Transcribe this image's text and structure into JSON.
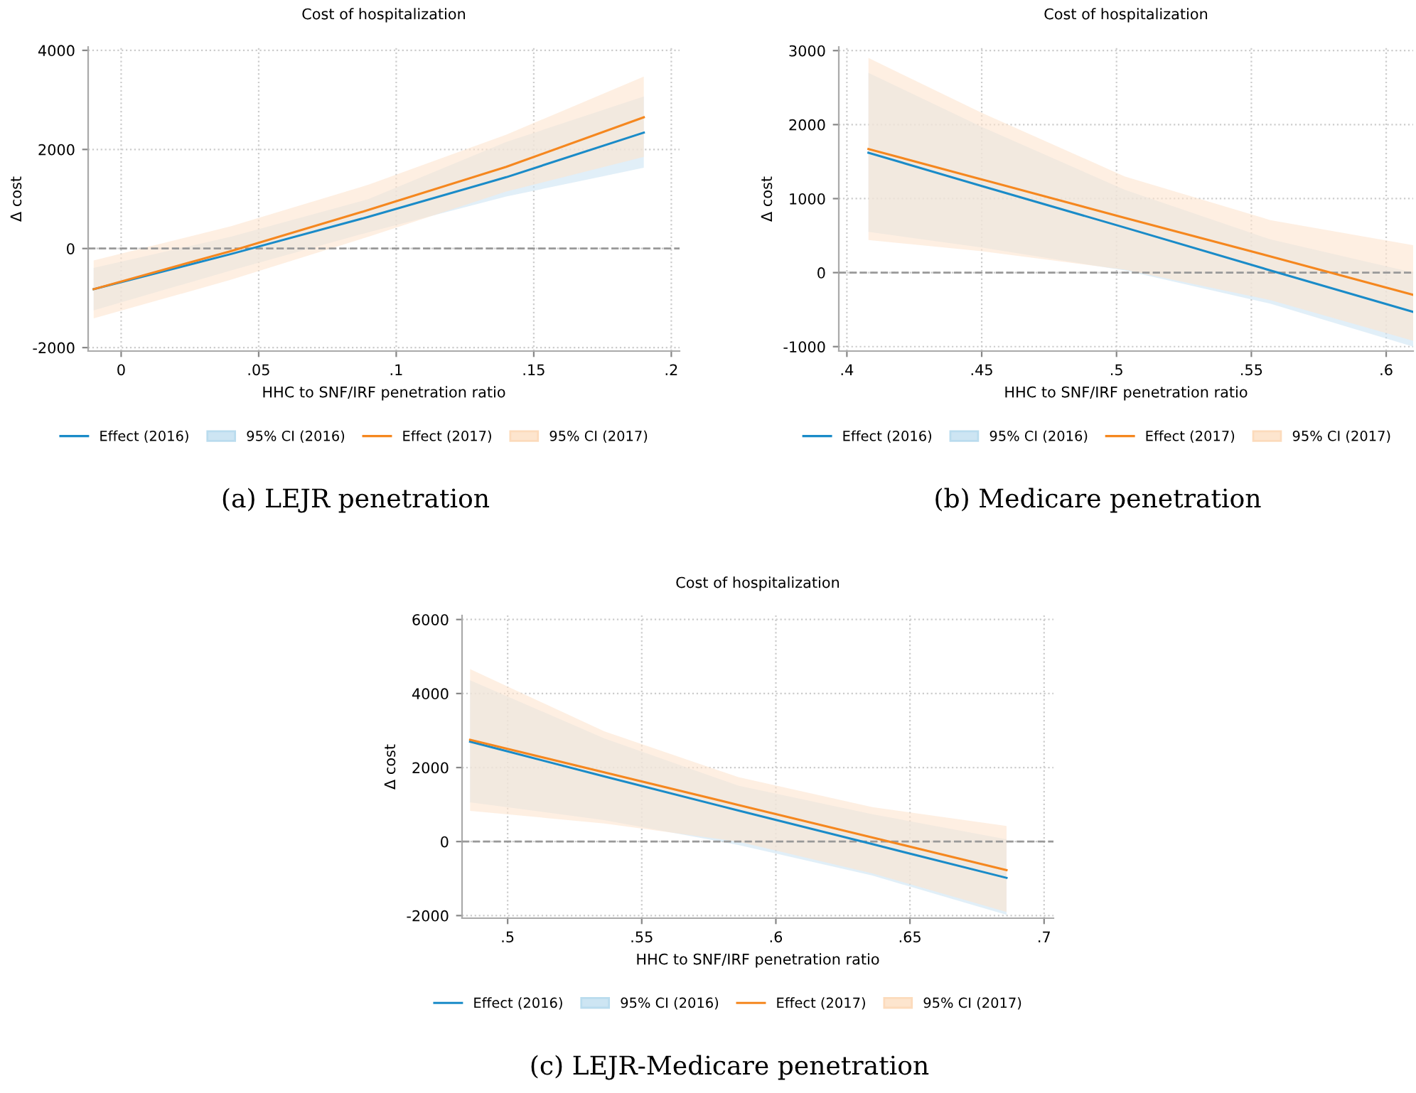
{
  "chart_data": [
    {
      "type": "line",
      "title": "Cost of hospitalization",
      "xlabel": "HHC to SNF/IRF penetration ratio",
      "ylabel": "Δ cost",
      "xlim": [
        -0.012,
        0.203
      ],
      "xticks": [
        {
          "value": 0,
          "label": "0"
        },
        {
          "value": 0.05,
          "label": ".05"
        },
        {
          "value": 0.1,
          "label": ".1"
        },
        {
          "value": 0.15,
          "label": ".15"
        },
        {
          "value": 0.2,
          "label": ".2"
        }
      ],
      "ylim": [
        -2070,
        4070
      ],
      "yticks": [
        -2000,
        0,
        2000,
        4000
      ],
      "grid": true,
      "legend": "bottom",
      "ref_lines": [
        {
          "axis": "y",
          "value": 0,
          "color": "#999999",
          "line_style": "dashed"
        }
      ],
      "annotations": [
        "(a) LEJR penetration",
        "95% CI (2016)",
        "95% CI (2017)"
      ],
      "series": [
        {
          "name": "Effect (2016)",
          "color": "#1a8bc8",
          "x": [
            -0.01,
            0.04,
            0.09,
            0.14,
            0.19
          ],
          "values": [
            -820,
            -110,
            640,
            1440,
            2340
          ],
          "lower": [
            -1250,
            -440,
            330,
            1050,
            1630
          ],
          "upper": [
            -390,
            240,
            1000,
            2150,
            3070
          ]
        },
        {
          "name": "Effect (2017)",
          "color": "#f5871f",
          "x": [
            -0.01,
            0.04,
            0.09,
            0.14,
            0.19
          ],
          "values": [
            -820,
            -50,
            780,
            1650,
            2650
          ],
          "lower": [
            -1410,
            -630,
            240,
            1150,
            1850
          ],
          "upper": [
            -240,
            450,
            1290,
            2300,
            3470
          ]
        }
      ]
    },
    {
      "type": "line",
      "title": "Cost of hospitalization",
      "xlabel": "HHC to SNF/IRF penetration ratio",
      "ylabel": "Δ cost",
      "xlim": [
        0.397,
        0.61
      ],
      "xticks": [
        {
          "value": 0.4,
          "label": ".4"
        },
        {
          "value": 0.45,
          "label": ".45"
        },
        {
          "value": 0.5,
          "label": ".5"
        },
        {
          "value": 0.55,
          "label": ".55"
        },
        {
          "value": 0.6,
          "label": ".6"
        }
      ],
      "ylim": [
        -1060,
        3050
      ],
      "yticks": [
        -1000,
        0,
        1000,
        2000,
        3000
      ],
      "grid": true,
      "legend": "bottom",
      "ref_lines": [
        {
          "axis": "y",
          "value": 0,
          "color": "#999999",
          "line_style": "dashed"
        }
      ],
      "annotations": [
        "(b) Medicare penetration",
        "95% CI (2016)",
        "95% CI (2017)"
      ],
      "series": [
        {
          "name": "Effect (2016)",
          "color": "#1a8bc8",
          "x": [
            0.408,
            0.45,
            0.503,
            0.557,
            0.61
          ],
          "values": [
            1620,
            1170,
            610,
            30,
            -530
          ],
          "lower": [
            550,
            340,
            30,
            -420,
            -1000
          ],
          "upper": [
            2700,
            1970,
            1120,
            450,
            0
          ]
        },
        {
          "name": "Effect (2017)",
          "color": "#f5871f",
          "x": [
            0.408,
            0.45,
            0.503,
            0.557,
            0.61
          ],
          "values": [
            1670,
            1260,
            740,
            220,
            -300
          ],
          "lower": [
            440,
            290,
            40,
            -370,
            -920
          ],
          "upper": [
            2900,
            2160,
            1300,
            710,
            370
          ]
        }
      ]
    },
    {
      "type": "line",
      "title": "Cost of hospitalization",
      "xlabel": "HHC to SNF/IRF penetration ratio",
      "ylabel": "Δ cost",
      "xlim": [
        0.483,
        0.7035
      ],
      "xticks": [
        {
          "value": 0.5,
          "label": ".5"
        },
        {
          "value": 0.55,
          "label": ".55"
        },
        {
          "value": 0.6,
          "label": ".6"
        },
        {
          "value": 0.65,
          "label": ".65"
        },
        {
          "value": 0.7,
          "label": ".7"
        }
      ],
      "ylim": [
        -2070,
        6110
      ],
      "yticks": [
        -2000,
        0,
        2000,
        4000,
        6000
      ],
      "grid": true,
      "legend": "bottom",
      "ref_lines": [
        {
          "axis": "y",
          "value": 0,
          "color": "#999999",
          "line_style": "dashed"
        }
      ],
      "annotations": [
        "(c) LEJR-Medicare penetration",
        "95% CI (2016)",
        "95% CI (2017)"
      ],
      "series": [
        {
          "name": "Effect (2016)",
          "color": "#1a8bc8",
          "x": [
            0.486,
            0.536,
            0.586,
            0.636,
            0.686
          ],
          "values": [
            2700,
            1760,
            840,
            -70,
            -980
          ],
          "lower": [
            1060,
            580,
            -90,
            -920,
            -1980
          ],
          "upper": [
            4360,
            2790,
            1510,
            740,
            60
          ]
        },
        {
          "name": "Effect (2017)",
          "color": "#f5871f",
          "x": [
            0.486,
            0.536,
            0.586,
            0.636,
            0.686
          ],
          "values": [
            2750,
            1870,
            990,
            110,
            -770
          ],
          "lower": [
            830,
            490,
            0,
            -860,
            -1900
          ],
          "upper": [
            4660,
            2980,
            1740,
            930,
            420
          ]
        }
      ]
    }
  ]
}
